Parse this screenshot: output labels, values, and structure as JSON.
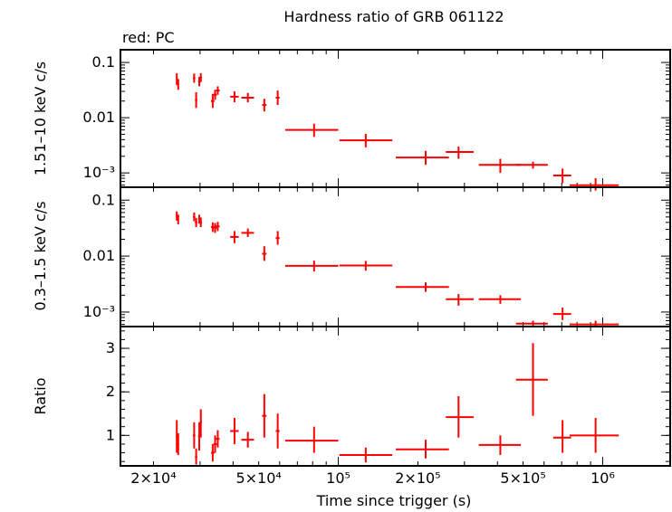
{
  "chart_data": {
    "type": "scatter",
    "title": "Hardness ratio of GRB 061122",
    "subtitle": "red: PC",
    "xlabel": "Time since trigger (s)",
    "xscale": "log",
    "xlim": [
      15000,
      1800000
    ],
    "x_tick_labels": [
      "2×10⁴",
      "5×10⁴",
      "10⁵",
      "2×10⁵",
      "5×10⁵",
      "10⁶"
    ],
    "x_tick_values": [
      20000,
      50000,
      100000,
      200000,
      500000,
      1000000
    ],
    "color": "#ff0000",
    "panels": [
      {
        "name": "hard",
        "ylabel": "1.51–10 keV c/s",
        "yscale": "log",
        "ylim": [
          0.00055,
          0.17
        ],
        "y_tick_labels": [
          "0.1",
          "0.01",
          "10⁻³"
        ],
        "y_tick_values": [
          0.1,
          0.01,
          0.001
        ],
        "points": [
          {
            "x": 24500,
            "xlo": 24300,
            "xhi": 24700,
            "y": 0.05,
            "ylo": 0.039,
            "yhi": 0.064
          },
          {
            "x": 24800,
            "xlo": 24600,
            "xhi": 25000,
            "y": 0.04,
            "ylo": 0.032,
            "yhi": 0.05
          },
          {
            "x": 28500,
            "xlo": 28200,
            "xhi": 28800,
            "y": 0.052,
            "ylo": 0.043,
            "yhi": 0.063
          },
          {
            "x": 29000,
            "xlo": 28700,
            "xhi": 29300,
            "y": 0.021,
            "ylo": 0.015,
            "yhi": 0.029
          },
          {
            "x": 29800,
            "xlo": 29500,
            "xhi": 30100,
            "y": 0.045,
            "ylo": 0.037,
            "yhi": 0.055
          },
          {
            "x": 30200,
            "xlo": 29900,
            "xhi": 30500,
            "y": 0.053,
            "ylo": 0.044,
            "yhi": 0.064
          },
          {
            "x": 33500,
            "xlo": 33000,
            "xhi": 34000,
            "y": 0.02,
            "ylo": 0.015,
            "yhi": 0.027
          },
          {
            "x": 34200,
            "xlo": 33700,
            "xhi": 34700,
            "y": 0.026,
            "ylo": 0.021,
            "yhi": 0.032
          },
          {
            "x": 35000,
            "xlo": 34400,
            "xhi": 35600,
            "y": 0.031,
            "ylo": 0.026,
            "yhi": 0.037
          },
          {
            "x": 40500,
            "xlo": 39000,
            "xhi": 42000,
            "y": 0.024,
            "ylo": 0.019,
            "yhi": 0.03
          },
          {
            "x": 45500,
            "xlo": 43000,
            "xhi": 48000,
            "y": 0.023,
            "ylo": 0.019,
            "yhi": 0.028
          },
          {
            "x": 52500,
            "xlo": 51500,
            "xhi": 53500,
            "y": 0.017,
            "ylo": 0.013,
            "yhi": 0.022
          },
          {
            "x": 59000,
            "xlo": 58000,
            "xhi": 60000,
            "y": 0.023,
            "ylo": 0.017,
            "yhi": 0.031
          },
          {
            "x": 81000,
            "xlo": 63000,
            "xhi": 100000,
            "y": 0.006,
            "ylo": 0.0045,
            "yhi": 0.0078
          },
          {
            "x": 127000,
            "xlo": 101000,
            "xhi": 160000,
            "y": 0.0039,
            "ylo": 0.0029,
            "yhi": 0.0051
          },
          {
            "x": 214000,
            "xlo": 165000,
            "xhi": 262000,
            "y": 0.0019,
            "ylo": 0.0014,
            "yhi": 0.0025
          },
          {
            "x": 285000,
            "xlo": 255000,
            "xhi": 325000,
            "y": 0.0024,
            "ylo": 0.0018,
            "yhi": 0.003
          },
          {
            "x": 410000,
            "xlo": 340000,
            "xhi": 490000,
            "y": 0.0014,
            "ylo": 0.001,
            "yhi": 0.0018
          },
          {
            "x": 545000,
            "xlo": 470000,
            "xhi": 620000,
            "y": 0.0014,
            "ylo": 0.0012,
            "yhi": 0.0016
          },
          {
            "x": 705000,
            "xlo": 650000,
            "xhi": 760000,
            "y": 0.0009,
            "ylo": 0.00065,
            "yhi": 0.0012
          },
          {
            "x": 940000,
            "xlo": 750000,
            "xhi": 1150000,
            "y": 0.0006,
            "ylo": 0.00048,
            "yhi": 0.0008
          }
        ]
      },
      {
        "name": "soft",
        "ylabel": "0.3–1.5 keV c/s",
        "yscale": "log",
        "ylim": [
          0.00055,
          0.17
        ],
        "y_tick_labels": [
          "0.1",
          "0.01",
          "10⁻³"
        ],
        "y_tick_values": [
          0.1,
          0.01,
          0.001
        ],
        "points": [
          {
            "x": 24500,
            "xlo": 24300,
            "xhi": 24700,
            "y": 0.052,
            "ylo": 0.043,
            "yhi": 0.063
          },
          {
            "x": 24800,
            "xlo": 24600,
            "xhi": 25000,
            "y": 0.045,
            "ylo": 0.037,
            "yhi": 0.055
          },
          {
            "x": 28500,
            "xlo": 28200,
            "xhi": 28800,
            "y": 0.05,
            "ylo": 0.042,
            "yhi": 0.06
          },
          {
            "x": 29000,
            "xlo": 28700,
            "xhi": 29300,
            "y": 0.04,
            "ylo": 0.033,
            "yhi": 0.048
          },
          {
            "x": 29800,
            "xlo": 29500,
            "xhi": 30100,
            "y": 0.046,
            "ylo": 0.038,
            "yhi": 0.055
          },
          {
            "x": 30200,
            "xlo": 29900,
            "xhi": 30500,
            "y": 0.04,
            "ylo": 0.033,
            "yhi": 0.049
          },
          {
            "x": 33500,
            "xlo": 33000,
            "xhi": 34000,
            "y": 0.033,
            "ylo": 0.027,
            "yhi": 0.04
          },
          {
            "x": 34200,
            "xlo": 33700,
            "xhi": 34700,
            "y": 0.032,
            "ylo": 0.026,
            "yhi": 0.039
          },
          {
            "x": 35000,
            "xlo": 34400,
            "xhi": 35600,
            "y": 0.034,
            "ylo": 0.028,
            "yhi": 0.041
          },
          {
            "x": 40500,
            "xlo": 39000,
            "xhi": 42000,
            "y": 0.022,
            "ylo": 0.017,
            "yhi": 0.028
          },
          {
            "x": 45500,
            "xlo": 43000,
            "xhi": 48000,
            "y": 0.026,
            "ylo": 0.022,
            "yhi": 0.031
          },
          {
            "x": 52500,
            "xlo": 51500,
            "xhi": 53500,
            "y": 0.011,
            "ylo": 0.0082,
            "yhi": 0.015
          },
          {
            "x": 59000,
            "xlo": 58000,
            "xhi": 60000,
            "y": 0.021,
            "ylo": 0.016,
            "yhi": 0.028
          },
          {
            "x": 81000,
            "xlo": 63000,
            "xhi": 100000,
            "y": 0.0067,
            "ylo": 0.0053,
            "yhi": 0.0083
          },
          {
            "x": 127000,
            "xlo": 101000,
            "xhi": 160000,
            "y": 0.0068,
            "ylo": 0.0055,
            "yhi": 0.0082
          },
          {
            "x": 214000,
            "xlo": 165000,
            "xhi": 262000,
            "y": 0.0028,
            "ylo": 0.0023,
            "yhi": 0.0034
          },
          {
            "x": 285000,
            "xlo": 255000,
            "xhi": 325000,
            "y": 0.0017,
            "ylo": 0.0013,
            "yhi": 0.0021
          },
          {
            "x": 410000,
            "xlo": 340000,
            "xhi": 490000,
            "y": 0.0017,
            "ylo": 0.0014,
            "yhi": 0.002
          },
          {
            "x": 545000,
            "xlo": 470000,
            "xhi": 620000,
            "y": 0.00062,
            "ylo": 0.00055,
            "yhi": 0.0007
          },
          {
            "x": 705000,
            "xlo": 650000,
            "xhi": 760000,
            "y": 0.00092,
            "ylo": 0.00072,
            "yhi": 0.0012
          },
          {
            "x": 940000,
            "xlo": 750000,
            "xhi": 1150000,
            "y": 0.0006,
            "ylo": 0.00055,
            "yhi": 0.0007
          }
        ]
      },
      {
        "name": "ratio",
        "ylabel": "Ratio",
        "yscale": "linear",
        "ylim": [
          0.3,
          3.5
        ],
        "y_tick_labels": [
          "1",
          "2",
          "3"
        ],
        "y_tick_values": [
          1,
          2,
          3
        ],
        "points": [
          {
            "x": 24500,
            "xlo": 24300,
            "xhi": 24700,
            "y": 0.98,
            "ylo": 0.6,
            "yhi": 1.35
          },
          {
            "x": 24800,
            "xlo": 24600,
            "xhi": 25000,
            "y": 0.8,
            "ylo": 0.55,
            "yhi": 1.05
          },
          {
            "x": 28500,
            "xlo": 28200,
            "xhi": 28800,
            "y": 1.0,
            "ylo": 0.7,
            "yhi": 1.3
          },
          {
            "x": 29000,
            "xlo": 28700,
            "xhi": 29300,
            "y": 0.5,
            "ylo": 0.33,
            "yhi": 0.7
          },
          {
            "x": 29800,
            "xlo": 29500,
            "xhi": 30100,
            "y": 0.98,
            "ylo": 0.65,
            "yhi": 1.3
          },
          {
            "x": 30200,
            "xlo": 29900,
            "xhi": 30500,
            "y": 1.3,
            "ylo": 0.95,
            "yhi": 1.6
          },
          {
            "x": 33500,
            "xlo": 33000,
            "xhi": 34000,
            "y": 0.6,
            "ylo": 0.4,
            "yhi": 0.8
          },
          {
            "x": 34200,
            "xlo": 33700,
            "xhi": 34700,
            "y": 0.8,
            "ylo": 0.6,
            "yhi": 1.0
          },
          {
            "x": 35000,
            "xlo": 34400,
            "xhi": 35600,
            "y": 0.92,
            "ylo": 0.72,
            "yhi": 1.12
          },
          {
            "x": 40500,
            "xlo": 39000,
            "xhi": 42000,
            "y": 1.1,
            "ylo": 0.8,
            "yhi": 1.4
          },
          {
            "x": 45500,
            "xlo": 43000,
            "xhi": 48000,
            "y": 0.9,
            "ylo": 0.72,
            "yhi": 1.08
          },
          {
            "x": 52500,
            "xlo": 51500,
            "xhi": 53500,
            "y": 1.45,
            "ylo": 0.95,
            "yhi": 1.95
          },
          {
            "x": 59000,
            "xlo": 58000,
            "xhi": 60000,
            "y": 1.1,
            "ylo": 0.7,
            "yhi": 1.5
          },
          {
            "x": 81000,
            "xlo": 63000,
            "xhi": 100000,
            "y": 0.88,
            "ylo": 0.6,
            "yhi": 1.2
          },
          {
            "x": 127000,
            "xlo": 101000,
            "xhi": 160000,
            "y": 0.55,
            "ylo": 0.38,
            "yhi": 0.72
          },
          {
            "x": 214000,
            "xlo": 165000,
            "xhi": 262000,
            "y": 0.68,
            "ylo": 0.47,
            "yhi": 0.9
          },
          {
            "x": 285000,
            "xlo": 255000,
            "xhi": 325000,
            "y": 1.42,
            "ylo": 0.95,
            "yhi": 1.9
          },
          {
            "x": 410000,
            "xlo": 340000,
            "xhi": 490000,
            "y": 0.78,
            "ylo": 0.55,
            "yhi": 1.0
          },
          {
            "x": 545000,
            "xlo": 470000,
            "xhi": 620000,
            "y": 2.28,
            "ylo": 1.45,
            "yhi": 3.12
          },
          {
            "x": 705000,
            "xlo": 650000,
            "xhi": 760000,
            "y": 0.95,
            "ylo": 0.6,
            "yhi": 1.35
          },
          {
            "x": 940000,
            "xlo": 750000,
            "xhi": 1150000,
            "y": 1.0,
            "ylo": 0.6,
            "yhi": 1.4
          }
        ]
      }
    ]
  }
}
